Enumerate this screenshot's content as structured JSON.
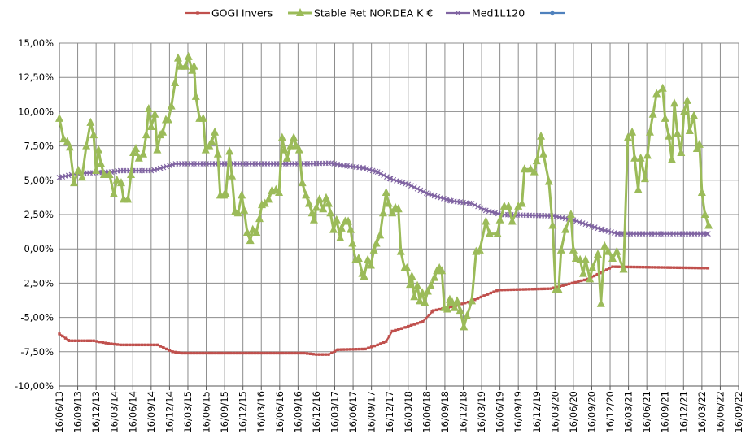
{
  "chart_data": {
    "type": "line",
    "title": "",
    "xlabel": "",
    "ylabel": "",
    "x_unit": "months since 16/06/13",
    "xlim": [
      0,
      111
    ],
    "ylim": [
      -10,
      15
    ],
    "grid": true,
    "legend_position": "top",
    "y_ticks": [
      "-10,00%",
      "-7,50%",
      "-5,00%",
      "-2,50%",
      "0,00%",
      "2,50%",
      "5,00%",
      "7,50%",
      "10,00%",
      "12,50%",
      "15,00%"
    ],
    "x_ticks": [
      "16/06/13",
      "16/09/13",
      "16/12/13",
      "16/03/14",
      "16/06/14",
      "16/09/14",
      "16/12/14",
      "16/03/15",
      "16/06/15",
      "16/09/15",
      "16/12/15",
      "16/03/16",
      "16/06/16",
      "16/09/16",
      "16/12/16",
      "16/03/17",
      "16/06/17",
      "16/09/17",
      "16/12/17",
      "16/03/18",
      "16/06/18",
      "16/09/18",
      "16/12/18",
      "16/03/19",
      "16/06/19",
      "16/09/19",
      "16/12/19",
      "16/03/20",
      "16/06/20",
      "16/09/20",
      "16/12/20",
      "16/03/21",
      "16/06/21",
      "16/09/21",
      "16/12/21",
      "16/03/22",
      "16/06/22",
      "16/09/22"
    ],
    "series": [
      {
        "name": "GOGI Invers",
        "color": "#C0504D",
        "marker": "square",
        "points": [
          [
            0,
            -6.2
          ],
          [
            1.6,
            -6.7
          ],
          [
            5.6,
            -6.7
          ],
          [
            8,
            -6.9
          ],
          [
            10,
            -7.0
          ],
          [
            16,
            -7.0
          ],
          [
            18.5,
            -7.5
          ],
          [
            20,
            -7.6
          ],
          [
            40,
            -7.6
          ],
          [
            42,
            -7.7
          ],
          [
            44,
            -7.7
          ],
          [
            45.5,
            -7.35
          ],
          [
            50,
            -7.3
          ],
          [
            52,
            -7.0
          ],
          [
            53.4,
            -6.75
          ],
          [
            54.4,
            -6.0
          ],
          [
            56,
            -5.8
          ],
          [
            58,
            -5.5
          ],
          [
            59.4,
            -5.3
          ],
          [
            61.1,
            -4.5
          ],
          [
            64.3,
            -4.2
          ],
          [
            67.4,
            -3.8
          ],
          [
            70,
            -3.3
          ],
          [
            71.8,
            -3.0
          ],
          [
            80.3,
            -2.9
          ],
          [
            86.4,
            -2.2
          ],
          [
            90.4,
            -1.3
          ],
          [
            106,
            -1.4
          ]
        ]
      },
      {
        "name": "Stable Ret NORDEA K €",
        "color": "#9BBB59",
        "marker": "triangle",
        "points": [
          [
            0,
            9.5
          ],
          [
            0.7,
            8.0
          ],
          [
            1.3,
            7.8
          ],
          [
            1.7,
            7.4
          ],
          [
            2.4,
            4.8
          ],
          [
            3.1,
            5.7
          ],
          [
            3.7,
            5.2
          ],
          [
            4.4,
            7.5
          ],
          [
            5.1,
            9.2
          ],
          [
            5.6,
            8.3
          ],
          [
            6.0,
            5.7
          ],
          [
            6.4,
            7.2
          ],
          [
            6.8,
            6.2
          ],
          [
            7.3,
            5.4
          ],
          [
            8.2,
            5.4
          ],
          [
            8.9,
            4.0
          ],
          [
            9.4,
            5.0
          ],
          [
            10.1,
            4.8
          ],
          [
            10.5,
            3.6
          ],
          [
            11.2,
            3.6
          ],
          [
            11.7,
            5.4
          ],
          [
            12.1,
            7.0
          ],
          [
            12.5,
            7.3
          ],
          [
            13.0,
            6.6
          ],
          [
            13.7,
            6.9
          ],
          [
            14.2,
            8.3
          ],
          [
            14.6,
            10.2
          ],
          [
            15.0,
            8.9
          ],
          [
            15.6,
            9.8
          ],
          [
            16.0,
            7.2
          ],
          [
            16.5,
            8.3
          ],
          [
            16.9,
            8.5
          ],
          [
            17.4,
            9.4
          ],
          [
            17.8,
            9.4
          ],
          [
            18.3,
            10.4
          ],
          [
            18.9,
            12.1
          ],
          [
            19.4,
            13.9
          ],
          [
            19.8,
            13.3
          ],
          [
            20.6,
            13.3
          ],
          [
            21.1,
            14.0
          ],
          [
            21.7,
            13.0
          ],
          [
            22.0,
            13.3
          ],
          [
            22.3,
            11.1
          ],
          [
            22.9,
            9.5
          ],
          [
            23.5,
            9.5
          ],
          [
            23.9,
            7.2
          ],
          [
            24.5,
            7.5
          ],
          [
            24.9,
            7.8
          ],
          [
            25.4,
            8.5
          ],
          [
            25.9,
            6.9
          ],
          [
            26.3,
            3.9
          ],
          [
            26.9,
            3.9
          ],
          [
            27.2,
            4.0
          ],
          [
            27.8,
            7.1
          ],
          [
            28.2,
            5.3
          ],
          [
            28.7,
            2.7
          ],
          [
            29.2,
            2.6
          ],
          [
            29.8,
            3.9
          ],
          [
            30.2,
            2.8
          ],
          [
            30.7,
            1.2
          ],
          [
            31.2,
            0.6
          ],
          [
            31.6,
            1.4
          ],
          [
            32.2,
            1.2
          ],
          [
            32.7,
            2.2
          ],
          [
            33.1,
            3.2
          ],
          [
            33.6,
            3.3
          ],
          [
            34.2,
            3.6
          ],
          [
            34.7,
            4.2
          ],
          [
            35.4,
            4.3
          ],
          [
            35.9,
            4.1
          ],
          [
            36.4,
            8.1
          ],
          [
            36.8,
            7.2
          ],
          [
            37.2,
            6.6
          ],
          [
            37.8,
            7.5
          ],
          [
            38.3,
            8.1
          ],
          [
            38.7,
            7.5
          ],
          [
            39.2,
            7.2
          ],
          [
            39.7,
            4.8
          ],
          [
            40.3,
            3.9
          ],
          [
            40.8,
            3.3
          ],
          [
            41.3,
            2.6
          ],
          [
            41.6,
            2.1
          ],
          [
            42.0,
            3.0
          ],
          [
            42.5,
            3.6
          ],
          [
            43.1,
            2.9
          ],
          [
            43.6,
            3.7
          ],
          [
            44.0,
            3.3
          ],
          [
            44.3,
            2.6
          ],
          [
            44.8,
            1.4
          ],
          [
            45.3,
            2.1
          ],
          [
            45.9,
            0.8
          ],
          [
            46.1,
            1.5
          ],
          [
            46.7,
            2.0
          ],
          [
            47.2,
            2.0
          ],
          [
            47.6,
            1.4
          ],
          [
            47.9,
            0.4
          ],
          [
            48.4,
            -0.8
          ],
          [
            48.9,
            -0.7
          ],
          [
            49.5,
            -1.8
          ],
          [
            49.8,
            -2.0
          ],
          [
            50.4,
            -0.8
          ],
          [
            50.9,
            -1.2
          ],
          [
            51.4,
            -0.1
          ],
          [
            51.8,
            0.4
          ],
          [
            52.4,
            1.0
          ],
          [
            52.9,
            2.6
          ],
          [
            53.4,
            4.1
          ],
          [
            53.8,
            3.3
          ],
          [
            54.4,
            2.6
          ],
          [
            54.9,
            3.0
          ],
          [
            55.4,
            2.9
          ],
          [
            55.8,
            -0.2
          ],
          [
            56.4,
            -1.4
          ],
          [
            56.8,
            -1.4
          ],
          [
            57.3,
            -2.6
          ],
          [
            57.6,
            -2.0
          ],
          [
            58.0,
            -3.5
          ],
          [
            58.5,
            -2.7
          ],
          [
            58.9,
            -3.8
          ],
          [
            59.3,
            -3.2
          ],
          [
            59.7,
            -3.9
          ],
          [
            60.2,
            -3.1
          ],
          [
            60.7,
            -2.7
          ],
          [
            61.3,
            -2.1
          ],
          [
            61.7,
            -1.6
          ],
          [
            62.1,
            -1.4
          ],
          [
            62.5,
            -1.6
          ],
          [
            62.9,
            -4.3
          ],
          [
            63.4,
            -4.4
          ],
          [
            63.8,
            -3.7
          ],
          [
            64.2,
            -3.9
          ],
          [
            64.6,
            -4.3
          ],
          [
            65.0,
            -3.8
          ],
          [
            65.5,
            -4.5
          ],
          [
            66.1,
            -5.7
          ],
          [
            66.6,
            -4.9
          ],
          [
            67.4,
            -3.8
          ],
          [
            68.1,
            -0.2
          ],
          [
            68.7,
            -0.1
          ],
          [
            69.7,
            2.0
          ],
          [
            70.3,
            1.1
          ],
          [
            71.6,
            1.1
          ],
          [
            72.0,
            2.1
          ],
          [
            72.7,
            3.1
          ],
          [
            73.4,
            3.1
          ],
          [
            74.0,
            2.0
          ],
          [
            75.0,
            3.1
          ],
          [
            75.6,
            3.3
          ],
          [
            76.0,
            5.8
          ],
          [
            77.0,
            5.8
          ],
          [
            77.6,
            5.6
          ],
          [
            78.0,
            6.4
          ],
          [
            78.7,
            8.2
          ],
          [
            79.1,
            6.9
          ],
          [
            80.0,
            4.9
          ],
          [
            80.6,
            1.7
          ],
          [
            81.1,
            -3.0
          ],
          [
            81.6,
            -3.0
          ],
          [
            82.0,
            -0.1
          ],
          [
            82.7,
            1.4
          ],
          [
            83.6,
            2.5
          ],
          [
            84.0,
            -0.1
          ],
          [
            84.4,
            -0.7
          ],
          [
            85.1,
            -0.8
          ],
          [
            85.6,
            -1.8
          ],
          [
            86.0,
            -0.8
          ],
          [
            86.7,
            -2.2
          ],
          [
            87.1,
            -1.4
          ],
          [
            88.0,
            -0.4
          ],
          [
            88.5,
            -4.0
          ],
          [
            89.1,
            0.2
          ],
          [
            89.7,
            -0.2
          ],
          [
            90.4,
            -0.7
          ],
          [
            91.1,
            -0.2
          ],
          [
            92.2,
            -1.5
          ],
          [
            92.9,
            8.1
          ],
          [
            93.6,
            8.5
          ],
          [
            94.0,
            6.6
          ],
          [
            94.6,
            4.3
          ],
          [
            95.0,
            6.6
          ],
          [
            95.7,
            5.1
          ],
          [
            96.1,
            6.8
          ],
          [
            96.5,
            8.5
          ],
          [
            97.0,
            9.8
          ],
          [
            97.6,
            11.3
          ],
          [
            98.6,
            11.7
          ],
          [
            99.0,
            9.5
          ],
          [
            99.6,
            8.2
          ],
          [
            100.1,
            6.5
          ],
          [
            100.5,
            10.6
          ],
          [
            101.0,
            8.4
          ],
          [
            101.6,
            7.0
          ],
          [
            102.1,
            10.0
          ],
          [
            102.6,
            10.8
          ],
          [
            103.0,
            8.6
          ],
          [
            103.7,
            9.7
          ],
          [
            104.2,
            7.3
          ],
          [
            104.6,
            7.6
          ],
          [
            105.0,
            4.1
          ],
          [
            105.5,
            2.5
          ],
          [
            106.1,
            1.7
          ]
        ]
      },
      {
        "name": "Med1L120",
        "color": "#8064A2",
        "marker": "x",
        "points": [
          [
            0,
            5.2
          ],
          [
            3,
            5.5
          ],
          [
            8.5,
            5.6
          ],
          [
            10,
            5.7
          ],
          [
            15,
            5.7
          ],
          [
            16,
            5.8
          ],
          [
            19,
            6.2
          ],
          [
            40,
            6.2
          ],
          [
            44.4,
            6.25
          ],
          [
            46,
            6.1
          ],
          [
            49.7,
            5.9
          ],
          [
            52,
            5.6
          ],
          [
            54.1,
            5.1
          ],
          [
            57,
            4.7
          ],
          [
            60.3,
            4.0
          ],
          [
            64,
            3.5
          ],
          [
            67.4,
            3.3
          ],
          [
            69.7,
            2.8
          ],
          [
            72.3,
            2.5
          ],
          [
            80.7,
            2.4
          ],
          [
            84,
            2.1
          ],
          [
            88.7,
            1.4
          ],
          [
            91.3,
            1.1
          ],
          [
            106,
            1.1
          ]
        ]
      },
      {
        "name": "",
        "color": "#4F81BD",
        "marker": "diamond",
        "points": []
      }
    ]
  }
}
